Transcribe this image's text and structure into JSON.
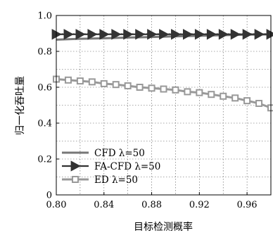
{
  "chart_data": {
    "type": "line",
    "title": "",
    "xlabel": "目标检测概率",
    "ylabel": "归一化吞吐量",
    "xlim": [
      0.8,
      0.98
    ],
    "ylim": [
      0,
      1.0
    ],
    "xticks": [
      0.8,
      0.84,
      0.88,
      0.92,
      0.96
    ],
    "xtick_labels": [
      "0.80",
      "0.84",
      "0.88",
      "0.92",
      "0.96"
    ],
    "yticks": [
      0,
      0.2,
      0.4,
      0.6,
      0.8,
      1.0
    ],
    "ytick_labels": [
      "0",
      "0.2",
      "0.4",
      "0.6",
      "0.8",
      "1.0"
    ],
    "grid": true,
    "legend_position": "bottom-left",
    "series": [
      {
        "name": "CFD λ=50",
        "marker": "none",
        "color": "#777777",
        "x": [
          0.8,
          0.82,
          0.84,
          0.86,
          0.88,
          0.9,
          0.92,
          0.94,
          0.96,
          0.98
        ],
        "y": [
          0.865,
          0.87,
          0.873,
          0.877,
          0.88,
          0.884,
          0.887,
          0.89,
          0.893,
          0.895
        ]
      },
      {
        "name": "FA-CFD λ=50",
        "marker": "triangle-right",
        "color": "#333333",
        "x": [
          0.8,
          0.81,
          0.82,
          0.83,
          0.84,
          0.85,
          0.86,
          0.87,
          0.88,
          0.89,
          0.9,
          0.91,
          0.92,
          0.93,
          0.94,
          0.95,
          0.96,
          0.97,
          0.98
        ],
        "y": [
          0.895,
          0.895,
          0.895,
          0.895,
          0.895,
          0.895,
          0.895,
          0.895,
          0.895,
          0.895,
          0.895,
          0.895,
          0.895,
          0.895,
          0.895,
          0.895,
          0.895,
          0.895,
          0.895
        ]
      },
      {
        "name": "ED λ=50",
        "marker": "square",
        "color": "#999999",
        "x": [
          0.8,
          0.81,
          0.82,
          0.83,
          0.84,
          0.85,
          0.86,
          0.87,
          0.88,
          0.89,
          0.9,
          0.91,
          0.92,
          0.93,
          0.94,
          0.95,
          0.96,
          0.97,
          0.98
        ],
        "y": [
          0.645,
          0.64,
          0.635,
          0.63,
          0.62,
          0.615,
          0.608,
          0.6,
          0.595,
          0.59,
          0.585,
          0.575,
          0.57,
          0.56,
          0.55,
          0.54,
          0.525,
          0.51,
          0.485
        ]
      }
    ]
  }
}
